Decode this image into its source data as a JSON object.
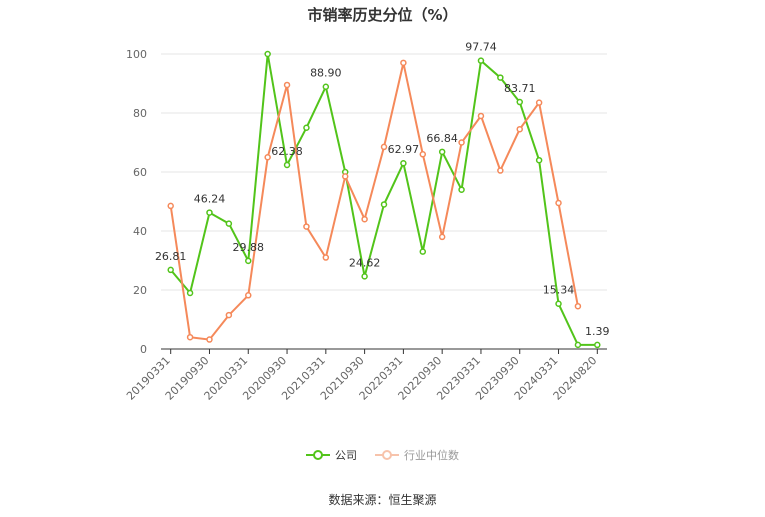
{
  "chart_data": {
    "type": "line",
    "title": "市销率历史分位（%）",
    "x": [
      "20190331",
      "20190630",
      "20190930",
      "20191231",
      "20200331",
      "20200630",
      "20200930",
      "20201231",
      "20210331",
      "20210630",
      "20210930",
      "20211231",
      "20220331",
      "20220630",
      "20220930",
      "20221231",
      "20230331",
      "20230630",
      "20230930",
      "20231231",
      "20240331",
      "20240630",
      "20240820"
    ],
    "x_tick_labels": [
      "20190331",
      "20190930",
      "20200331",
      "20200930",
      "20210331",
      "20210930",
      "20220331",
      "20220930",
      "20230331",
      "20230930",
      "20240331",
      "20240820"
    ],
    "ylim": [
      0,
      100
    ],
    "y_ticks": [
      0,
      20,
      40,
      60,
      80,
      100
    ],
    "grid": true,
    "legend_position": "bottom",
    "series": [
      {
        "name": "公司",
        "color": "#52c41a",
        "values": [
          26.81,
          19.0,
          46.24,
          42.5,
          29.88,
          100.0,
          62.38,
          75.0,
          88.9,
          60.0,
          24.62,
          49.0,
          62.97,
          33.0,
          66.84,
          54.0,
          97.74,
          92.0,
          83.71,
          64.0,
          15.34,
          1.4,
          1.39
        ]
      },
      {
        "name": "行业中位数",
        "color": "#f5895a",
        "values": [
          48.5,
          4.0,
          3.2,
          11.5,
          18.2,
          65.0,
          89.5,
          41.5,
          31.0,
          58.5,
          44.0,
          68.5,
          97.0,
          66.0,
          38.0,
          70.0,
          79.0,
          60.5,
          74.5,
          83.5,
          49.5,
          14.5,
          null
        ]
      }
    ],
    "annotations": [
      {
        "series": 0,
        "index": 0,
        "text": "26.81"
      },
      {
        "series": 0,
        "index": 2,
        "text": "46.24"
      },
      {
        "series": 0,
        "index": 4,
        "text": "29.88"
      },
      {
        "series": 0,
        "index": 6,
        "text": "62.38"
      },
      {
        "series": 0,
        "index": 8,
        "text": "88.90"
      },
      {
        "series": 0,
        "index": 10,
        "text": "24.62"
      },
      {
        "series": 0,
        "index": 12,
        "text": "62.97"
      },
      {
        "series": 0,
        "index": 14,
        "text": "66.84"
      },
      {
        "series": 0,
        "index": 16,
        "text": "97.74"
      },
      {
        "series": 0,
        "index": 18,
        "text": "83.71"
      },
      {
        "series": 0,
        "index": 20,
        "text": "15.34"
      },
      {
        "series": 0,
        "index": 22,
        "text": "1.39"
      }
    ]
  },
  "legend": {
    "company_label": "公司",
    "industry_label": "行业中位数"
  },
  "source": "数据来源：恒生聚源"
}
